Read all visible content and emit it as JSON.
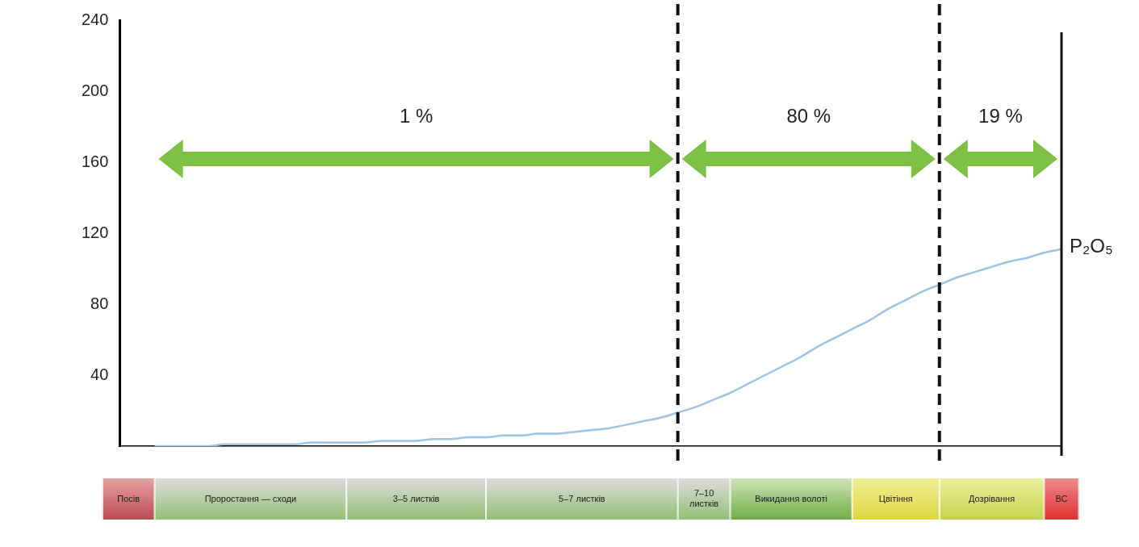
{
  "chart_data": {
    "type": "line",
    "categories": [
      "Посів",
      null,
      "Проростання — сходи",
      null,
      null,
      null,
      null,
      null,
      null,
      null,
      null,
      null,
      null,
      "3–5 листків",
      null,
      null,
      null,
      null,
      null,
      null,
      null,
      "5–7 листків",
      null,
      null,
      null,
      null,
      null,
      null,
      null,
      null,
      null,
      null,
      "7–10 листків",
      null,
      null,
      "Викидання волоті",
      null,
      null,
      null,
      null,
      null,
      null,
      "Цвітіння",
      null,
      null,
      null,
      null,
      "Дозрівання",
      null,
      null,
      null,
      null,
      null,
      "ВС",
      null
    ],
    "series": [
      {
        "name": "P₂O₅",
        "color": "#9dc3e6",
        "values": [
          null,
          null,
          0,
          0,
          0,
          0,
          1,
          1,
          1,
          1,
          1,
          2,
          2,
          2,
          2,
          3,
          3,
          3,
          4,
          4,
          5,
          5,
          6,
          6,
          7,
          7,
          8,
          9,
          10,
          12,
          14,
          16,
          19,
          22,
          26,
          30,
          35,
          40,
          45,
          50,
          56,
          61,
          66,
          71,
          77,
          82,
          87,
          91,
          95,
          98,
          101,
          104,
          106,
          109,
          111
        ]
      }
    ],
    "ylim": [
      0,
      240
    ],
    "yticks": [
      40,
      80,
      120,
      160,
      200,
      240
    ],
    "grid": false,
    "periods": [
      {
        "from": "Проростання — сходи",
        "value": 1,
        "label": "1 %"
      },
      {
        "from": "7–10 листків",
        "value": 80,
        "label": "80 %"
      },
      {
        "from": "Дозрівання",
        "value": 19,
        "label": "19 %"
      }
    ]
  }
}
